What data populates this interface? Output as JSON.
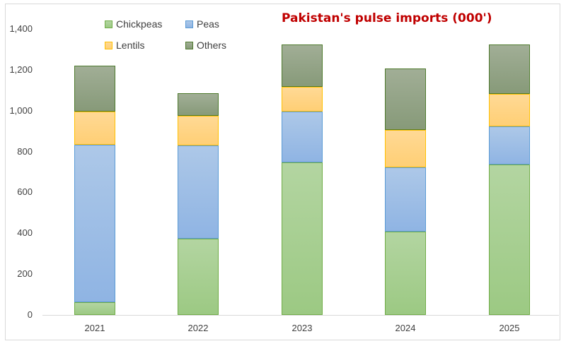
{
  "chart_data": {
    "type": "bar",
    "stacked": true,
    "title": "Pakistan's pulse imports (000')",
    "xlabel": "",
    "ylabel": "",
    "ylim": [
      0,
      1400
    ],
    "yticks": [
      "0",
      "200",
      "400",
      "600",
      "800",
      "1,000",
      "1,200",
      "1,400"
    ],
    "categories": [
      "2021",
      "2022",
      "2023",
      "2024",
      "2025"
    ],
    "series": [
      {
        "name": "Chickpeas",
        "color": "#a9d18e",
        "values": [
          62,
          373,
          747,
          408,
          736
        ]
      },
      {
        "name": "Peas",
        "color": "#9dc3e6",
        "values": [
          771,
          457,
          248,
          314,
          187
        ]
      },
      {
        "name": "Lentils",
        "color": "#ffd580",
        "values": [
          162,
          145,
          122,
          184,
          159
        ]
      },
      {
        "name": "Others",
        "color": "#8fa382",
        "values": [
          225,
          110,
          207,
          300,
          242
        ]
      }
    ],
    "legend_position": "top-left, inside plot",
    "grid": false
  },
  "legend": [
    {
      "label": "Chickpeas"
    },
    {
      "label": "Peas"
    },
    {
      "label": "Lentils"
    },
    {
      "label": "Others"
    }
  ]
}
